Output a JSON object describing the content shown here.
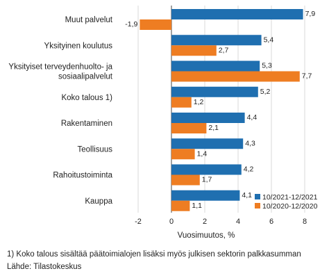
{
  "chart_data": {
    "type": "bar",
    "orientation": "horizontal",
    "categories": [
      [
        "Muut palvelut"
      ],
      [
        "Yksityinen koulutus"
      ],
      [
        "Yksityiset terveydenhuolto- ja",
        "sosiaalipalvelut"
      ],
      [
        "Koko talous 1)"
      ],
      [
        "Rakentaminen"
      ],
      [
        "Teollisuus"
      ],
      [
        "Rahoitustoiminta"
      ],
      [
        "Kauppa"
      ]
    ],
    "series": [
      {
        "name": "10/2021-12/2021",
        "color": "#1f6fb0",
        "values": [
          7.9,
          5.4,
          5.3,
          5.2,
          4.4,
          4.3,
          4.2,
          4.1
        ],
        "labels": [
          "7,9",
          "5,4",
          "5,3",
          "5,2",
          "4,4",
          "4,3",
          "4,2",
          "4,1"
        ]
      },
      {
        "name": "10/2020-12/2020",
        "color": "#ee7d22",
        "values": [
          -1.9,
          2.7,
          7.7,
          1.2,
          2.1,
          1.4,
          1.7,
          1.1
        ],
        "labels": [
          "-1,9",
          "2,7",
          "7,7",
          "1,2",
          "2,1",
          "1,4",
          "1,7",
          "1,1"
        ]
      }
    ],
    "xlim": [
      -3,
      9
    ],
    "xticks": [
      -2,
      0,
      2,
      4,
      6,
      8
    ],
    "xlabel": "Vuosimuutos, %",
    "legend_position": "bottom-right",
    "grid": true
  },
  "footnotes": {
    "note1": "1) Koko talous sisältää päätoimialojen lisäksi myös julkisen sektorin palkkasumman",
    "source": "Lähde: Tilastokeskus"
  }
}
